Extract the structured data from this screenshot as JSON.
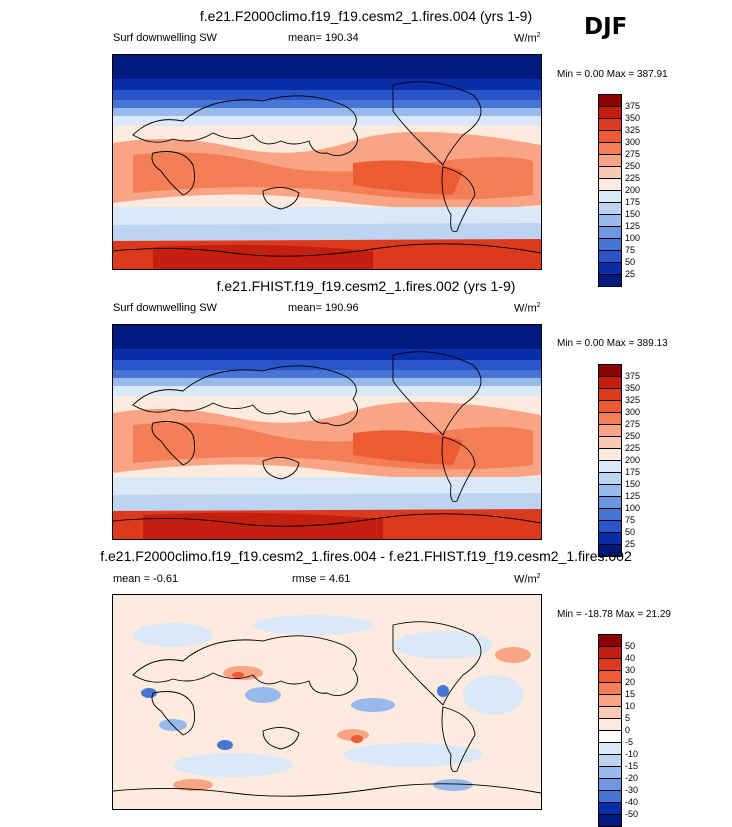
{
  "season": "DJF",
  "panels": [
    {
      "title": "f.e21.F2000climo.f19_f19.cesm2_1.fires.004 (yrs 1-9)",
      "variable": "Surf downwelling SW",
      "stat": "mean= 190.34",
      "units_base": "W/m",
      "units_exp": "2",
      "minmax": "Min =   0.00 Max = 387.91",
      "colorbar_levels": [
        "375",
        "350",
        "325",
        "300",
        "275",
        "250",
        "225",
        "200",
        "175",
        "150",
        "125",
        "100",
        "75",
        "50",
        "25"
      ],
      "colors": [
        "#8b0000",
        "#c41e10",
        "#dc3a1c",
        "#ec5b33",
        "#f47e55",
        "#f9a585",
        "#fbcab5",
        "#fdebe0",
        "#dbe8f7",
        "#bcd4f2",
        "#98b9ec",
        "#6e97e2",
        "#4775d6",
        "#2a55c8",
        "#0a2ea8",
        "#011a80"
      ]
    },
    {
      "title": "f.e21.FHIST.f19_f19.cesm2_1.fires.002 (yrs 1-9)",
      "variable": "Surf downwelling SW",
      "stat": "mean= 190.96",
      "units_base": "W/m",
      "units_exp": "2",
      "minmax": "Min =   0.00 Max = 389.13",
      "colorbar_levels": [
        "375",
        "350",
        "325",
        "300",
        "275",
        "250",
        "225",
        "200",
        "175",
        "150",
        "125",
        "100",
        "75",
        "50",
        "25"
      ],
      "colors": [
        "#8b0000",
        "#c41e10",
        "#dc3a1c",
        "#ec5b33",
        "#f47e55",
        "#f9a585",
        "#fbcab5",
        "#fdebe0",
        "#dbe8f7",
        "#bcd4f2",
        "#98b9ec",
        "#6e97e2",
        "#4775d6",
        "#2a55c8",
        "#0a2ea8",
        "#011a80"
      ]
    },
    {
      "title": "f.e21.F2000climo.f19_f19.cesm2_1.fires.004 - f.e21.FHIST.f19_f19.cesm2_1.fires.002",
      "variable": "mean =  -0.61",
      "stat": "rmse =   4.61",
      "units_base": "W/m",
      "units_exp": "2",
      "minmax": "Min = -18.78 Max =  21.29",
      "colorbar_levels": [
        "50",
        "40",
        "30",
        "20",
        "15",
        "10",
        "5",
        "0",
        "-5",
        "-10",
        "-15",
        "-20",
        "-30",
        "-40",
        "-50"
      ],
      "colors": [
        "#8b0000",
        "#c41e10",
        "#dc3a1c",
        "#ec5b33",
        "#f47e55",
        "#f9a585",
        "#fbcab5",
        "#fdebe0",
        "#ffffff",
        "#dbe8f7",
        "#bcd4f2",
        "#98b9ec",
        "#6e97e2",
        "#4775d6",
        "#0a2ea8",
        "#011a80"
      ]
    }
  ]
}
